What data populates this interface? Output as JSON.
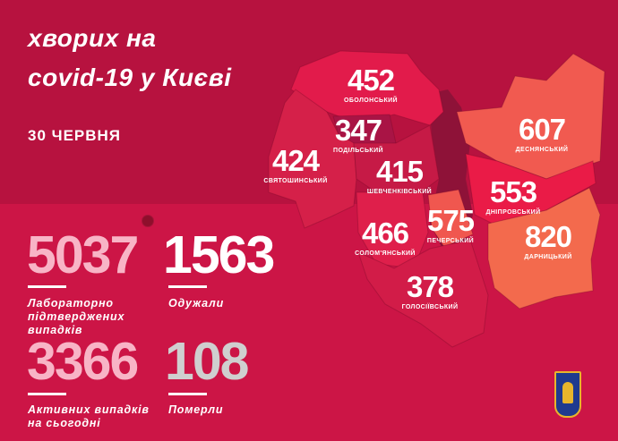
{
  "header": {
    "title_line1": "хворих на",
    "title_line2": "covid-19 у Києві",
    "date": "30 ЧЕРВНЯ"
  },
  "stats": [
    {
      "value": "5037",
      "label": [
        "Лабораторно",
        "підтверджених",
        "випадків"
      ],
      "color": "#f8b4c6"
    },
    {
      "value": "1563",
      "label": [
        "Одужали"
      ],
      "color": "#ffffff"
    },
    {
      "value": "3366",
      "label": [
        "Активних випадків",
        "на сьогодні"
      ],
      "color": "#f8b4c6"
    },
    {
      "value": "108",
      "label": [
        "Померли"
      ],
      "color": "#cfcfcf"
    }
  ],
  "districts": [
    {
      "name": "ОБОЛОНСЬКИЙ",
      "value": "452",
      "color": "#e21b4b"
    },
    {
      "name": "ПОДІЛЬСЬКИЙ",
      "value": "347",
      "color": "#a91445"
    },
    {
      "name": "СВЯТОШИНСЬКИЙ",
      "value": "424",
      "color": "#d52049"
    },
    {
      "name": "ШЕВЧЕНКІВСЬКИЙ",
      "value": "415",
      "color": "#c61a46"
    },
    {
      "name": "ДЕСНЯНСЬКИЙ",
      "value": "607",
      "color": "#f15a50"
    },
    {
      "name": "ДНІПРОВСЬКИЙ",
      "value": "553",
      "color": "#ea1b47"
    },
    {
      "name": "ДАРНИЦЬКИЙ",
      "value": "820",
      "color": "#f36a4d"
    },
    {
      "name": "СОЛОМ'ЯНСЬКИЙ",
      "value": "466",
      "color": "#df1f4b"
    },
    {
      "name": "ПЕЧЕРСЬКИЙ",
      "value": "575",
      "color": "#f0574f"
    },
    {
      "name": "ГОЛОСІЇВСЬКИЙ",
      "value": "378",
      "color": "#d21c48"
    }
  ],
  "colors": {
    "background": "#cc1546",
    "top_band": "#b7123f",
    "river": "#8e1238"
  },
  "icons": [
    "virus-icon",
    "kyiv-coat-of-arms-icon"
  ]
}
